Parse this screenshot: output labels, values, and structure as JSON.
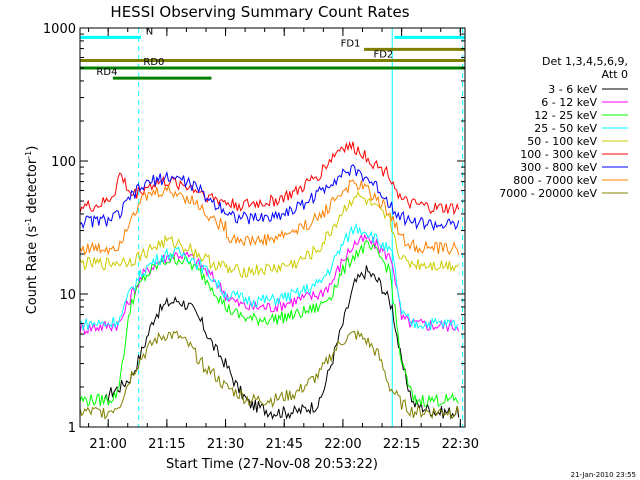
{
  "chart_data": {
    "type": "line",
    "title": "HESSI Observing Summary Count Rates",
    "xlabel": "Start Time (27-Nov-08 20:53:22)",
    "ylabel_main": "Count Rate (s",
    "ylabel_sup1": "-1",
    "ylabel_mid": " detector",
    "ylabel_sup2": "-1",
    "ylabel_end": ")",
    "yscale": "log",
    "ylim": [
      1,
      1000
    ],
    "xlim": [
      20.88,
      22.52
    ],
    "xticks": [
      {
        "v": 21.0,
        "label": "21:00"
      },
      {
        "v": 21.25,
        "label": "21:15"
      },
      {
        "v": 21.5,
        "label": "21:30"
      },
      {
        "v": 21.75,
        "label": "21:45"
      },
      {
        "v": 22.0,
        "label": "22:00"
      },
      {
        "v": 22.25,
        "label": "22:15"
      },
      {
        "v": 22.5,
        "label": "22:30"
      }
    ],
    "yticks": [
      {
        "v": 1,
        "label": "1"
      },
      {
        "v": 10,
        "label": "10"
      },
      {
        "v": 100,
        "label": "100"
      },
      {
        "v": 1000,
        "label": "1000"
      }
    ],
    "legend_header": [
      "Det 1,3,4,5,6,9,",
      "Att 0"
    ],
    "legend_position": "right",
    "series": [
      {
        "name": "3 - 6 keV",
        "color": "#000000",
        "x": [
          20.985,
          21.005,
          21.05,
          21.1,
          21.15,
          21.2,
          21.25,
          21.3,
          21.35,
          21.4,
          21.45,
          21.5,
          21.55,
          21.6,
          21.7,
          21.8,
          21.9,
          21.95,
          22.0,
          22.05,
          22.1,
          22.12,
          22.16,
          22.21,
          22.25,
          22.3,
          22.4,
          22.5
        ],
        "y": [
          1.5,
          1.8,
          2.0,
          2.4,
          4.0,
          7.0,
          8.5,
          9.0,
          8.0,
          6.0,
          4.0,
          3.0,
          2.0,
          1.5,
          1.3,
          1.3,
          1.5,
          3.0,
          6.0,
          12.0,
          15.0,
          14.0,
          12.0,
          8.0,
          3.0,
          1.5,
          1.3,
          1.3
        ]
      },
      {
        "name": "6 - 12 keV",
        "color": "#ff00ff",
        "x": [
          20.88,
          21.0,
          21.05,
          21.1,
          21.15,
          21.2,
          21.25,
          21.3,
          21.35,
          21.4,
          21.45,
          21.5,
          21.55,
          21.6,
          21.7,
          21.8,
          21.9,
          21.95,
          22.0,
          22.05,
          22.1,
          22.15,
          22.21,
          22.25,
          22.3,
          22.4,
          22.5
        ],
        "y": [
          5.5,
          5.8,
          6.0,
          10.0,
          14.0,
          17.0,
          19.0,
          20.0,
          19.0,
          16.0,
          13.0,
          10.0,
          8.5,
          8.0,
          8.0,
          9.0,
          10.0,
          12.0,
          18.0,
          24.0,
          26.0,
          23.0,
          18.0,
          6.5,
          6.0,
          5.8,
          5.8
        ]
      },
      {
        "name": "12 - 25 keV",
        "color": "#00ff00",
        "x": [
          20.88,
          21.0,
          21.04,
          21.1,
          21.15,
          21.2,
          21.25,
          21.3,
          21.35,
          21.4,
          21.45,
          21.5,
          21.55,
          21.6,
          21.7,
          21.8,
          21.9,
          21.95,
          22.0,
          22.05,
          22.1,
          22.15,
          22.2,
          22.25,
          22.3,
          22.4,
          22.5
        ],
        "y": [
          1.6,
          1.6,
          1.8,
          9.0,
          13.0,
          16.0,
          18.0,
          18.5,
          17.0,
          14.0,
          11.0,
          8.0,
          7.0,
          6.5,
          6.5,
          7.0,
          8.0,
          10.0,
          15.0,
          20.0,
          23.0,
          20.0,
          15.0,
          3.0,
          1.6,
          1.6,
          1.6
        ]
      },
      {
        "name": "25 - 50 keV",
        "color": "#00ffff",
        "x": [
          20.88,
          21.0,
          21.05,
          21.1,
          21.15,
          21.2,
          21.25,
          21.3,
          21.35,
          21.4,
          21.45,
          21.5,
          21.55,
          21.6,
          21.7,
          21.8,
          21.9,
          21.95,
          22.0,
          22.05,
          22.1,
          22.15,
          22.21,
          22.25,
          22.3,
          22.4,
          22.5
        ],
        "y": [
          6.0,
          6.0,
          6.5,
          11.0,
          15.0,
          18.0,
          20.0,
          20.5,
          19.0,
          16.0,
          13.0,
          10.0,
          9.5,
          9.0,
          9.0,
          10.0,
          12.0,
          16.0,
          24.0,
          32.0,
          30.0,
          25.0,
          20.0,
          7.0,
          6.0,
          6.0,
          6.0
        ]
      },
      {
        "name": "50 - 100 keV",
        "color": "#cccc00",
        "x": [
          20.88,
          21.0,
          21.05,
          21.1,
          21.15,
          21.2,
          21.25,
          21.3,
          21.35,
          21.4,
          21.45,
          21.5,
          21.51,
          21.6,
          21.7,
          21.8,
          21.9,
          21.95,
          22.0,
          22.05,
          22.1,
          22.15,
          22.2,
          22.25,
          22.3,
          22.4,
          22.5
        ],
        "y": [
          17.0,
          17.0,
          17.5,
          18.0,
          20.0,
          23.0,
          25.0,
          24.0,
          22.0,
          19.0,
          17.0,
          16.0,
          15.0,
          15.0,
          15.5,
          17.0,
          22.0,
          30.0,
          42.0,
          55.0,
          50.0,
          42.0,
          35.0,
          18.0,
          17.0,
          16.5,
          16.5
        ]
      },
      {
        "name": "100 - 300 keV",
        "color": "#ff0000",
        "x": [
          20.88,
          20.95,
          21.0,
          21.03,
          21.05,
          21.1,
          21.15,
          21.2,
          21.25,
          21.3,
          21.35,
          21.4,
          21.45,
          21.49,
          21.51,
          21.55,
          21.6,
          21.7,
          21.8,
          21.9,
          21.95,
          22.0,
          22.05,
          22.1,
          22.15,
          22.2,
          22.25,
          22.3,
          22.4,
          22.5
        ],
        "y": [
          45.0,
          46.0,
          50.0,
          60.0,
          80.0,
          55.0,
          62.0,
          68.0,
          70.0,
          68.0,
          64.0,
          58.0,
          52.0,
          50.0,
          48.0,
          47.0,
          47.0,
          50.0,
          58.0,
          80.0,
          105.0,
          130.0,
          125.0,
          110.0,
          90.0,
          80.0,
          50.0,
          47.0,
          44.0,
          44.0
        ]
      },
      {
        "name": "300 - 800 keV",
        "color": "#0000ff",
        "x": [
          20.88,
          21.0,
          21.05,
          21.1,
          21.15,
          21.2,
          21.25,
          21.3,
          21.35,
          21.4,
          21.45,
          21.49,
          21.51,
          21.55,
          21.6,
          21.7,
          21.8,
          21.9,
          21.95,
          22.0,
          22.05,
          22.1,
          22.15,
          22.2,
          22.25,
          22.3,
          22.4,
          22.5
        ],
        "y": [
          35.0,
          36.0,
          40.0,
          55.0,
          65.0,
          72.0,
          76.0,
          74.0,
          68.0,
          58.0,
          48.0,
          45.0,
          40.0,
          38.0,
          37.0,
          38.0,
          44.0,
          58.0,
          70.0,
          82.0,
          85.0,
          75.0,
          62.0,
          48.0,
          38.0,
          35.0,
          33.0,
          33.0
        ]
      },
      {
        "name": "800 - 7000 keV",
        "color": "#ff8000",
        "x": [
          20.88,
          21.0,
          21.05,
          21.1,
          21.15,
          21.2,
          21.25,
          21.3,
          21.35,
          21.4,
          21.45,
          21.5,
          21.51,
          21.6,
          21.7,
          21.8,
          21.9,
          21.95,
          22.0,
          22.05,
          22.1,
          22.15,
          22.2,
          22.25,
          22.3,
          22.4,
          22.5
        ],
        "y": [
          22.0,
          22.0,
          24.0,
          40.0,
          52.0,
          58.0,
          60.0,
          57.0,
          52.0,
          44.0,
          36.0,
          32.0,
          27.0,
          25.0,
          26.0,
          30.0,
          38.0,
          48.0,
          60.0,
          68.0,
          62.0,
          50.0,
          42.0,
          26.0,
          23.0,
          22.0,
          22.0
        ]
      },
      {
        "name": "7000 - 20000 keV",
        "color": "#808000",
        "x": [
          20.88,
          21.0,
          21.05,
          21.1,
          21.15,
          21.2,
          21.25,
          21.3,
          21.35,
          21.4,
          21.45,
          21.5,
          21.55,
          21.6,
          21.7,
          21.8,
          21.9,
          21.95,
          22.0,
          22.05,
          22.1,
          22.15,
          22.2,
          22.25,
          22.3,
          22.4,
          22.5
        ],
        "y": [
          1.3,
          1.3,
          1.5,
          2.5,
          3.5,
          4.5,
          5.0,
          4.8,
          4.0,
          3.0,
          2.5,
          2.0,
          1.8,
          1.6,
          1.6,
          1.8,
          2.5,
          3.5,
          4.5,
          5.0,
          4.5,
          3.5,
          2.0,
          1.5,
          1.3,
          1.3,
          1.3
        ]
      }
    ],
    "flags": [
      {
        "name": "N",
        "color": "#00ffff",
        "y": 850,
        "segments": [
          [
            20.88,
            21.14
          ],
          [
            22.22,
            22.52
          ]
        ],
        "label_x": 21.16
      },
      {
        "name": "FD1",
        "color": "#808000",
        "y": 690,
        "segments": [
          [
            22.09,
            22.52
          ]
        ],
        "label_x": 21.99
      },
      {
        "name": "FD2",
        "color": "#808000",
        "y": 570,
        "segments": [
          [
            20.88,
            22.52
          ]
        ],
        "label_x": 22.13
      },
      {
        "name": "RD0",
        "color": "#008000",
        "y": 500,
        "segments": [
          [
            20.88,
            22.52
          ]
        ],
        "label_x": 21.15
      },
      {
        "name": "RD4",
        "color": "#008000",
        "y": 420,
        "segments": [
          [
            21.02,
            21.44
          ]
        ],
        "label_x": 20.95
      }
    ],
    "vlines": [
      {
        "x": 20.88,
        "color": "#00ffff",
        "dash": false
      },
      {
        "x": 21.13,
        "color": "#00ffff",
        "dash": true
      },
      {
        "x": 22.21,
        "color": "#00ffff",
        "dash": false
      },
      {
        "x": 22.51,
        "color": "#00ffff",
        "dash": true
      }
    ]
  },
  "footer_timestamp": "21-Jan-2010 23:55"
}
